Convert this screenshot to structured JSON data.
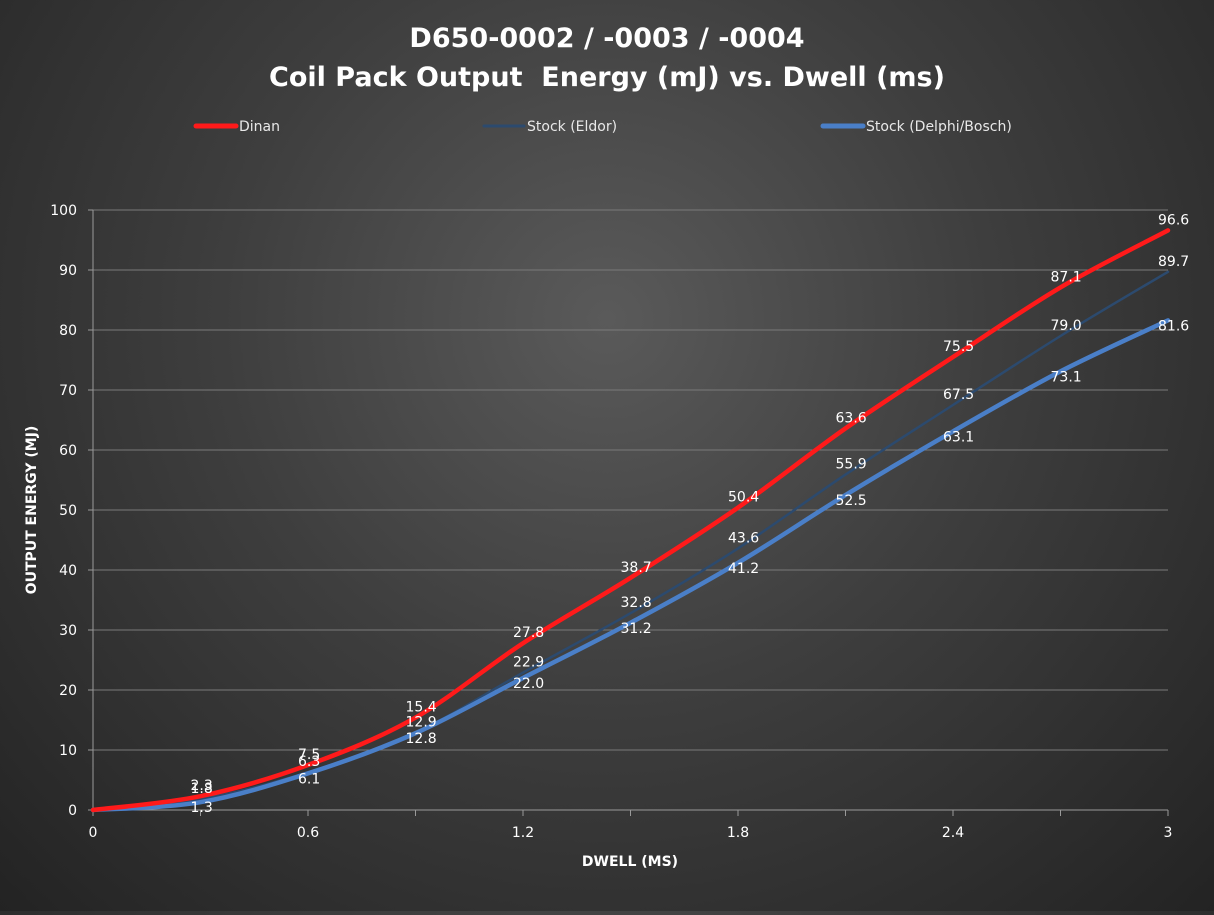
{
  "chart_data": {
    "type": "line",
    "title": "D650-0002 / -0003 / -0004",
    "subtitle": "Coil Pack Output  Energy (mJ) vs. Dwell (ms)",
    "xlabel": "DWELL (MS)",
    "ylabel": "OUTPUT ENERGY (MJ)",
    "xlim": [
      0,
      3
    ],
    "ylim": [
      0,
      100
    ],
    "x_ticks": [
      "0",
      "0.6",
      "1.2",
      "1.8",
      "2.4",
      "3"
    ],
    "y_ticks": [
      "0",
      "10",
      "20",
      "30",
      "40",
      "50",
      "60",
      "70",
      "80",
      "90",
      "100"
    ],
    "grid": "horizontal",
    "legend_position": "top",
    "x": [
      0,
      0.3,
      0.6,
      0.9,
      1.2,
      1.5,
      1.8,
      2.1,
      2.4,
      2.7,
      3.0
    ],
    "series": [
      {
        "name": "Dinan",
        "color": "#ff1a1a",
        "values": [
          0,
          2.3,
          7.5,
          15.4,
          27.8,
          38.7,
          50.4,
          63.6,
          75.5,
          87.1,
          96.6
        ],
        "labels": [
          "",
          "2.3",
          "7.5",
          "15.4",
          "27.8",
          "38.7",
          "50.4",
          "63.6",
          "75.5",
          "87.1",
          "96.6"
        ]
      },
      {
        "name": "Stock (Eldor)",
        "color": "#2c4a6e",
        "values": [
          0,
          1.8,
          6.3,
          12.9,
          22.9,
          32.8,
          43.6,
          55.9,
          67.5,
          79.0,
          89.7
        ],
        "labels": [
          "",
          "1.8",
          "6.3",
          "12.9",
          "22.9",
          "32.8",
          "43.6",
          "55.9",
          "67.5",
          "79.0",
          "89.7"
        ]
      },
      {
        "name": "Stock (Delphi/Bosch)",
        "color": "#4a7fc8",
        "values": [
          0,
          1.3,
          6.1,
          12.8,
          22.0,
          31.2,
          41.2,
          52.5,
          63.1,
          73.1,
          81.6
        ],
        "labels": [
          "",
          "1.3",
          "6.1",
          "12.8",
          "22.0",
          "31.2",
          "41.2",
          "52.5",
          "63.1",
          "73.1",
          "81.6"
        ]
      }
    ]
  }
}
